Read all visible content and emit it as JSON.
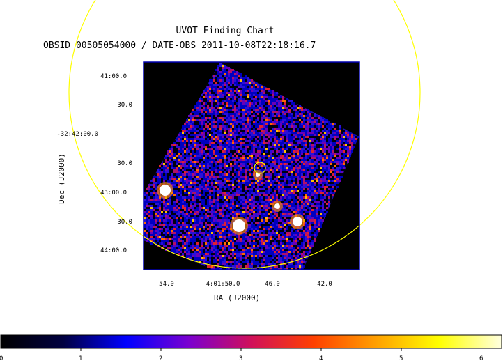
{
  "title": "UVOT Finding Chart",
  "subtitle": "OBSID 00505054000 / DATE-OBS 2011-10-08T22:18:16.7",
  "dec_axis": {
    "label": "Dec (J2000)",
    "ticks": [
      "41:00.0",
      "30.0",
      "-32:42:00.0",
      "30.0",
      "43:00.0",
      "30.0",
      "44:00.0"
    ]
  },
  "ra_axis": {
    "label": "RA (J2000)",
    "ticks": [
      "54.0",
      "4:01:50.0",
      "46.0",
      "42.0"
    ]
  },
  "colorbar": {
    "ticks": [
      "0",
      "1",
      "2",
      "3",
      "4",
      "5",
      "6"
    ],
    "stops": [
      "#000000",
      "#000040",
      "#0000ff",
      "#7a00d0",
      "#d0105a",
      "#ff4000",
      "#ffa000",
      "#ffff00",
      "#ffffe0"
    ]
  },
  "colors": {
    "circle": "#ffff00",
    "frame": "#0000b0",
    "background": "#000000"
  }
}
